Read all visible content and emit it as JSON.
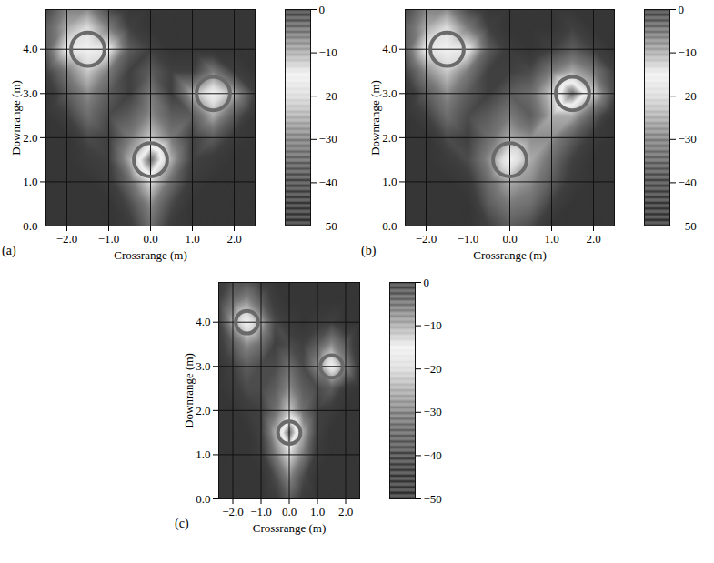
{
  "chart_data": [
    {
      "type": "heatmap",
      "panel": "(a)",
      "x_label": "Crossrange (m)",
      "y_label": "Downrange (m)",
      "xlim": [
        -2.5,
        2.5
      ],
      "ylim": [
        0,
        4.9
      ],
      "xticks": [
        -2,
        -1,
        0,
        1,
        2
      ],
      "yticks": [
        0,
        1,
        2,
        3,
        4
      ],
      "grid": true,
      "cells": {
        "x": [
          -2.5,
          -2,
          -1.5,
          -1,
          -0.5,
          0,
          0.5,
          1,
          1.5,
          2,
          2.5
        ],
        "y": [
          0,
          0.5,
          1,
          1.5,
          2,
          2.5,
          3,
          3.5,
          4,
          4.5,
          5
        ],
        "values": [
          [
            -45,
            -45,
            -45,
            -45,
            -42,
            -32,
            -42,
            -45,
            -45,
            -45,
            -45
          ],
          [
            -45,
            -45,
            -45,
            -45,
            -38,
            -28,
            -38,
            -45,
            -45,
            -45,
            -45
          ],
          [
            -45,
            -45,
            -45,
            -42,
            -32,
            -20,
            -32,
            -42,
            -45,
            -45,
            -45
          ],
          [
            -45,
            -45,
            -42,
            -40,
            -25,
            -5,
            -25,
            -40,
            -42,
            -45,
            -45
          ],
          [
            -45,
            -45,
            -38,
            -40,
            -30,
            -22,
            -30,
            -40,
            -35,
            -42,
            -45
          ],
          [
            -45,
            -40,
            -32,
            -38,
            -35,
            -28,
            -35,
            -35,
            -25,
            -35,
            -45
          ],
          [
            -45,
            -35,
            -28,
            -35,
            -40,
            -30,
            -40,
            -25,
            -15,
            -25,
            -40
          ],
          [
            -40,
            -30,
            -22,
            -30,
            -40,
            -35,
            -40,
            -40,
            -30,
            -40,
            -45
          ],
          [
            -35,
            -18,
            -15,
            -18,
            -35,
            -40,
            -45,
            -45,
            -45,
            -45,
            -45
          ],
          [
            -35,
            -25,
            -20,
            -30,
            -40,
            -45,
            -45,
            -45,
            -45,
            -45,
            -45
          ],
          [
            -40,
            -30,
            -30,
            -40,
            -45,
            -45,
            -45,
            -45,
            -45,
            -45,
            -45
          ]
        ]
      },
      "colorbar": {
        "range": [
          -50,
          0
        ],
        "ticks": [
          0,
          -10,
          -20,
          -30,
          -40,
          -50
        ]
      },
      "circles": [
        {
          "x": -1.5,
          "y": 4
        },
        {
          "x": 1.5,
          "y": 3
        },
        {
          "x": 0,
          "y": 1.5
        }
      ]
    },
    {
      "type": "heatmap",
      "panel": "(b)",
      "x_label": "Crossrange (m)",
      "y_label": "Downrange (m)",
      "xlim": [
        -2.5,
        2.5
      ],
      "ylim": [
        0,
        4.9
      ],
      "xticks": [
        -2,
        -1,
        0,
        1,
        2
      ],
      "yticks": [
        0,
        1,
        2,
        3,
        4
      ],
      "grid": true,
      "cells": {
        "x": [
          -2.5,
          -2,
          -1.5,
          -1,
          -0.5,
          0,
          0.5,
          1,
          1.5,
          2,
          2.5
        ],
        "y": [
          0,
          0.5,
          1,
          1.5,
          2,
          2.5,
          3,
          3.5,
          4,
          4.5,
          5
        ],
        "values": [
          [
            -45,
            -45,
            -45,
            -45,
            -40,
            -35,
            -38,
            -45,
            -45,
            -45,
            -45
          ],
          [
            -45,
            -45,
            -45,
            -45,
            -35,
            -30,
            -32,
            -40,
            -45,
            -45,
            -45
          ],
          [
            -45,
            -45,
            -45,
            -42,
            -32,
            -25,
            -28,
            -35,
            -42,
            -45,
            -45
          ],
          [
            -45,
            -45,
            -42,
            -38,
            -28,
            -15,
            -25,
            -32,
            -40,
            -45,
            -45
          ],
          [
            -45,
            -45,
            -38,
            -40,
            -32,
            -25,
            -28,
            -28,
            -35,
            -42,
            -45
          ],
          [
            -45,
            -40,
            -32,
            -38,
            -35,
            -30,
            -35,
            -25,
            -25,
            -35,
            -45
          ],
          [
            -45,
            -35,
            -28,
            -35,
            -40,
            -35,
            -32,
            -22,
            -5,
            -22,
            -38
          ],
          [
            -40,
            -28,
            -22,
            -30,
            -40,
            -40,
            -38,
            -30,
            -25,
            -30,
            -40
          ],
          [
            -35,
            -18,
            -15,
            -18,
            -35,
            -42,
            -45,
            -40,
            -35,
            -40,
            -45
          ],
          [
            -35,
            -25,
            -20,
            -30,
            -40,
            -45,
            -45,
            -45,
            -40,
            -45,
            -45
          ],
          [
            -40,
            -30,
            -30,
            -40,
            -45,
            -45,
            -45,
            -45,
            -45,
            -45,
            -45
          ]
        ]
      },
      "colorbar": {
        "range": [
          -50,
          0
        ],
        "ticks": [
          0,
          -10,
          -20,
          -30,
          -40,
          -50
        ]
      },
      "circles": [
        {
          "x": -1.5,
          "y": 4
        },
        {
          "x": 1.5,
          "y": 3
        },
        {
          "x": 0,
          "y": 1.5
        }
      ]
    },
    {
      "type": "heatmap",
      "panel": "(c)",
      "x_label": "Crossrange (m)",
      "y_label": "Downrange (m)",
      "xlim": [
        -2.5,
        2.5
      ],
      "ylim": [
        0,
        4.9
      ],
      "xticks": [
        -2,
        -1,
        0,
        1,
        2
      ],
      "yticks": [
        0,
        1,
        2,
        3,
        4
      ],
      "grid": true,
      "cells": {
        "x": [
          -2.5,
          -2,
          -1.5,
          -1,
          -0.5,
          0,
          0.5,
          1,
          1.5,
          2,
          2.5
        ],
        "y": [
          0,
          0.5,
          1,
          1.5,
          2,
          2.5,
          3,
          3.5,
          4,
          4.5,
          5
        ],
        "values": [
          [
            -45,
            -45,
            -45,
            -45,
            -42,
            -35,
            -42,
            -45,
            -45,
            -45,
            -45
          ],
          [
            -45,
            -45,
            -45,
            -45,
            -38,
            -28,
            -38,
            -45,
            -45,
            -45,
            -45
          ],
          [
            -45,
            -45,
            -45,
            -42,
            -30,
            -20,
            -30,
            -42,
            -45,
            -45,
            -45
          ],
          [
            -45,
            -45,
            -45,
            -40,
            -25,
            -5,
            -25,
            -40,
            -45,
            -45,
            -45
          ],
          [
            -45,
            -45,
            -42,
            -40,
            -32,
            -22,
            -32,
            -40,
            -42,
            -45,
            -45
          ],
          [
            -45,
            -42,
            -38,
            -38,
            -35,
            -28,
            -35,
            -38,
            -35,
            -42,
            -45
          ],
          [
            -45,
            -40,
            -35,
            -38,
            -38,
            -32,
            -38,
            -28,
            -15,
            -28,
            -42
          ],
          [
            -42,
            -35,
            -28,
            -32,
            -40,
            -38,
            -40,
            -35,
            -28,
            -35,
            -45
          ],
          [
            -40,
            -25,
            -15,
            -25,
            -38,
            -42,
            -45,
            -42,
            -40,
            -45,
            -45
          ],
          [
            -40,
            -32,
            -28,
            -35,
            -42,
            -45,
            -45,
            -45,
            -45,
            -45,
            -45
          ],
          [
            -42,
            -38,
            -38,
            -42,
            -45,
            -45,
            -45,
            -45,
            -45,
            -45,
            -45
          ]
        ]
      },
      "colorbar": {
        "range": [
          -50,
          0
        ],
        "ticks": [
          0,
          -10,
          -20,
          -30,
          -40,
          -50
        ]
      },
      "circles": [
        {
          "x": -1.5,
          "y": 4
        },
        {
          "x": 1.5,
          "y": 3
        },
        {
          "x": 0,
          "y": 1.5
        }
      ]
    }
  ]
}
